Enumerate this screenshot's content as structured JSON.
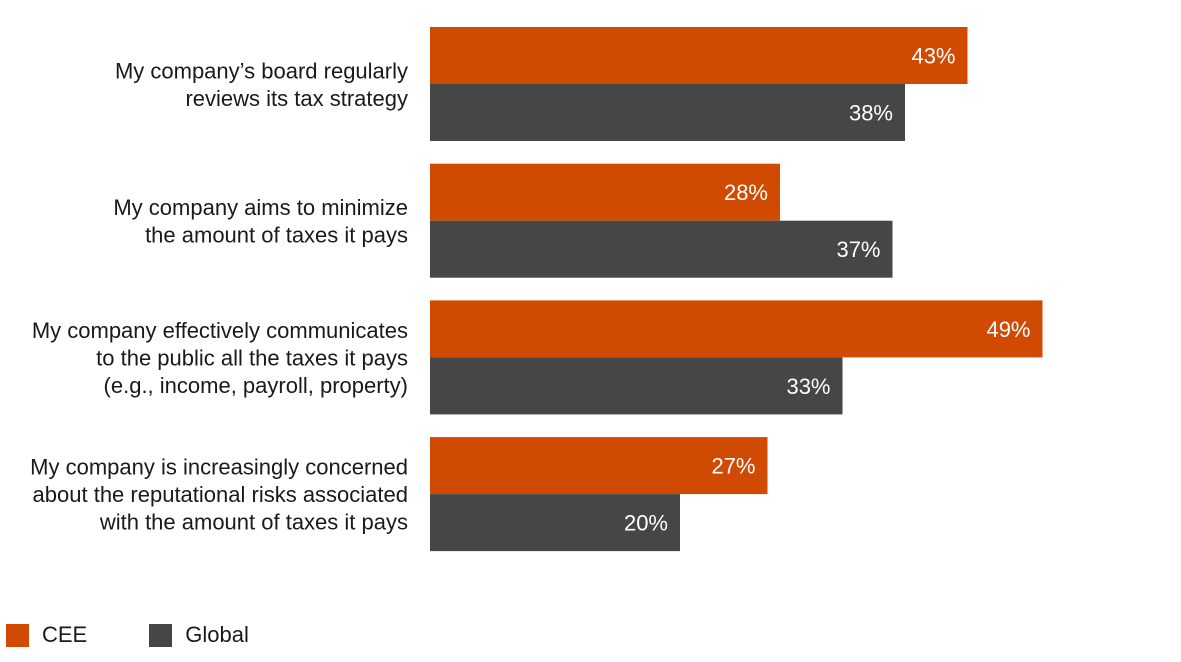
{
  "chart_data": {
    "type": "bar",
    "orientation": "horizontal",
    "categories": [
      [
        "My company’s board regularly",
        "reviews its tax strategy"
      ],
      [
        "My company aims to minimize",
        "the amount of taxes it pays"
      ],
      [
        "My company effectively communicates",
        "to the public all the taxes it pays",
        "(e.g., income, payroll, property)"
      ],
      [
        "My company is increasingly concerned",
        "about the reputational risks associated",
        "with the amount of taxes it pays"
      ]
    ],
    "series": [
      {
        "name": "CEE",
        "color": "#d04a02",
        "values": [
          43,
          28,
          49,
          27
        ]
      },
      {
        "name": "Global",
        "color": "#464646",
        "values": [
          38,
          37,
          33,
          20
        ]
      }
    ],
    "value_suffix": "%",
    "xlim": [
      0,
      60
    ],
    "grid": false,
    "legend_position": "bottom-left"
  }
}
